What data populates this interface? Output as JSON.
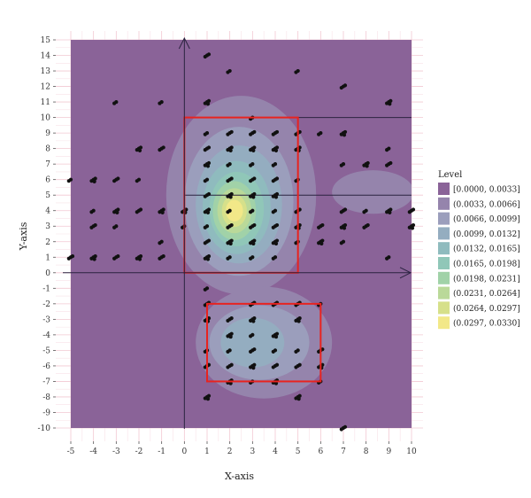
{
  "chart_data": {
    "type": "scatter",
    "subtype": "2d-density-contour",
    "xlabel": "X-axis",
    "ylabel": "Y-axis",
    "xlim": [
      -5,
      10
    ],
    "ylim": [
      -10,
      15
    ],
    "x_ticks": [
      "-5",
      "-4",
      "-3",
      "-2",
      "-1",
      "0",
      "1",
      "2",
      "3",
      "4",
      "5",
      "6",
      "7",
      "8",
      "9",
      "10"
    ],
    "y_ticks": [
      "-10",
      "-9",
      "-8",
      "-7",
      "-6",
      "-5",
      "-4",
      "-3",
      "-2",
      "-1",
      "0",
      "1",
      "2",
      "3",
      "4",
      "5",
      "6",
      "7",
      "8",
      "9",
      "10",
      "11",
      "12",
      "13",
      "14",
      "15"
    ],
    "grid": true,
    "legend": {
      "title": "Level",
      "placement": "right",
      "entries": [
        {
          "label": "[0.0000, 0.0033]",
          "color": "#8a6398"
        },
        {
          "label": "(0.0033, 0.0066]",
          "color": "#9584ac"
        },
        {
          "label": "(0.0066, 0.0099]",
          "color": "#9b9ebc"
        },
        {
          "label": "(0.0099, 0.0132]",
          "color": "#94adc0"
        },
        {
          "label": "(0.0132, 0.0165]",
          "color": "#8fbbbe"
        },
        {
          "label": "(0.0165, 0.0198]",
          "color": "#90c7b8"
        },
        {
          "label": "(0.0198, 0.0231]",
          "color": "#a1d2a8"
        },
        {
          "label": "(0.0231, 0.0264]",
          "color": "#bad999"
        },
        {
          "label": "(0.0264, 0.0297]",
          "color": "#d6e08a"
        },
        {
          "label": "(0.0297, 0.0330]",
          "color": "#f2e888"
        }
      ]
    },
    "reference_lines": [
      {
        "orientation": "horizontal",
        "y": 10,
        "x_from": 0,
        "x_to": 10
      },
      {
        "orientation": "horizontal",
        "y": 5,
        "x_from": 0,
        "x_to": 10
      }
    ],
    "highlight_boxes": [
      {
        "x_from": 0,
        "x_to": 5,
        "y_from": 0,
        "y_to": 10,
        "color": "#e8231f"
      },
      {
        "x_from": 1,
        "x_to": 6,
        "y_from": -7,
        "y_to": -2,
        "color": "#e8231f"
      }
    ],
    "density_blobs": [
      {
        "cx": 2.5,
        "cy": 5.0,
        "rx": 3.3,
        "ry": 6.4,
        "level": 1
      },
      {
        "cx": 3.5,
        "cy": -4.5,
        "rx": 3.0,
        "ry": 3.6,
        "level": 1
      },
      {
        "cx": 8.3,
        "cy": 5.2,
        "rx": 1.8,
        "ry": 1.4,
        "level": 1
      },
      {
        "cx": 2.4,
        "cy": 4.6,
        "rx": 2.4,
        "ry": 4.8,
        "level": 2
      },
      {
        "cx": 3.3,
        "cy": -4.5,
        "rx": 2.2,
        "ry": 2.4,
        "level": 2
      },
      {
        "cx": 2.4,
        "cy": 4.4,
        "rx": 1.9,
        "ry": 3.8,
        "level": 3
      },
      {
        "cx": 3.0,
        "cy": -4.5,
        "rx": 1.4,
        "ry": 1.6,
        "level": 3
      },
      {
        "cx": 2.3,
        "cy": 4.2,
        "rx": 1.5,
        "ry": 3.0,
        "level": 4
      },
      {
        "cx": 2.3,
        "cy": 4.1,
        "rx": 1.2,
        "ry": 2.4,
        "level": 5
      },
      {
        "cx": 2.2,
        "cy": 4.0,
        "rx": 0.95,
        "ry": 1.9,
        "level": 6
      },
      {
        "cx": 2.2,
        "cy": 4.0,
        "rx": 0.75,
        "ry": 1.45,
        "level": 7
      },
      {
        "cx": 2.2,
        "cy": 4.0,
        "rx": 0.55,
        "ry": 1.05,
        "level": 8
      },
      {
        "cx": 2.2,
        "cy": 4.0,
        "rx": 0.38,
        "ry": 0.7,
        "level": 9
      }
    ],
    "points": [
      [
        -5,
        6
      ],
      [
        -5,
        1
      ],
      [
        -4,
        6
      ],
      [
        -4,
        4
      ],
      [
        -4,
        3
      ],
      [
        -4,
        1
      ],
      [
        -3,
        11
      ],
      [
        -3,
        6
      ],
      [
        -3,
        4
      ],
      [
        -3,
        3
      ],
      [
        -3,
        1
      ],
      [
        -2,
        8
      ],
      [
        -2,
        6
      ],
      [
        -2,
        4
      ],
      [
        -2,
        1
      ],
      [
        -1,
        11
      ],
      [
        -1,
        8
      ],
      [
        -1,
        4
      ],
      [
        -1,
        2
      ],
      [
        -1,
        1
      ],
      [
        0,
        4
      ],
      [
        0,
        3
      ],
      [
        1,
        14
      ],
      [
        1,
        11
      ],
      [
        1,
        9
      ],
      [
        1,
        8
      ],
      [
        1,
        7
      ],
      [
        1,
        6
      ],
      [
        1,
        5
      ],
      [
        1,
        4
      ],
      [
        1,
        3
      ],
      [
        1,
        2
      ],
      [
        1,
        1
      ],
      [
        1,
        -1
      ],
      [
        1,
        -2
      ],
      [
        1,
        -3
      ],
      [
        1,
        -5
      ],
      [
        1,
        -6
      ],
      [
        1,
        -8
      ],
      [
        2,
        13
      ],
      [
        2,
        9
      ],
      [
        2,
        8
      ],
      [
        2,
        7
      ],
      [
        2,
        6
      ],
      [
        2,
        5
      ],
      [
        2,
        4
      ],
      [
        2,
        3
      ],
      [
        2,
        2
      ],
      [
        2,
        1
      ],
      [
        2,
        -3
      ],
      [
        2,
        -4
      ],
      [
        2,
        -5
      ],
      [
        2,
        -6
      ],
      [
        2,
        -7
      ],
      [
        3,
        10
      ],
      [
        3,
        9
      ],
      [
        3,
        8
      ],
      [
        3,
        7
      ],
      [
        3,
        6
      ],
      [
        3,
        5
      ],
      [
        3,
        4
      ],
      [
        3,
        3
      ],
      [
        3,
        2
      ],
      [
        3,
        1
      ],
      [
        3,
        -2
      ],
      [
        3,
        -3
      ],
      [
        3,
        -4
      ],
      [
        3,
        -5
      ],
      [
        3,
        -6
      ],
      [
        3,
        -7
      ],
      [
        4,
        9
      ],
      [
        4,
        8
      ],
      [
        4,
        7
      ],
      [
        4,
        6
      ],
      [
        4,
        5
      ],
      [
        4,
        4
      ],
      [
        4,
        3
      ],
      [
        4,
        2
      ],
      [
        4,
        1
      ],
      [
        4,
        -2
      ],
      [
        4,
        -4
      ],
      [
        4,
        -5
      ],
      [
        4,
        -6
      ],
      [
        4,
        -7
      ],
      [
        5,
        13
      ],
      [
        5,
        9
      ],
      [
        5,
        8
      ],
      [
        5,
        6
      ],
      [
        5,
        4
      ],
      [
        5,
        3
      ],
      [
        5,
        2
      ],
      [
        5,
        -2
      ],
      [
        5,
        -3
      ],
      [
        5,
        -5
      ],
      [
        5,
        -6
      ],
      [
        5,
        -8
      ],
      [
        6,
        9
      ],
      [
        6,
        3
      ],
      [
        6,
        2
      ],
      [
        6,
        -2
      ],
      [
        6,
        -5
      ],
      [
        6,
        -6
      ],
      [
        6,
        -7
      ],
      [
        7,
        12
      ],
      [
        7,
        9
      ],
      [
        7,
        7
      ],
      [
        7,
        4
      ],
      [
        7,
        3
      ],
      [
        7,
        2
      ],
      [
        7,
        -10
      ],
      [
        8,
        7
      ],
      [
        8,
        4
      ],
      [
        8,
        3
      ],
      [
        9,
        11
      ],
      [
        9,
        8
      ],
      [
        9,
        7
      ],
      [
        9,
        4
      ],
      [
        9,
        1
      ],
      [
        10,
        4
      ],
      [
        10,
        3
      ]
    ]
  }
}
